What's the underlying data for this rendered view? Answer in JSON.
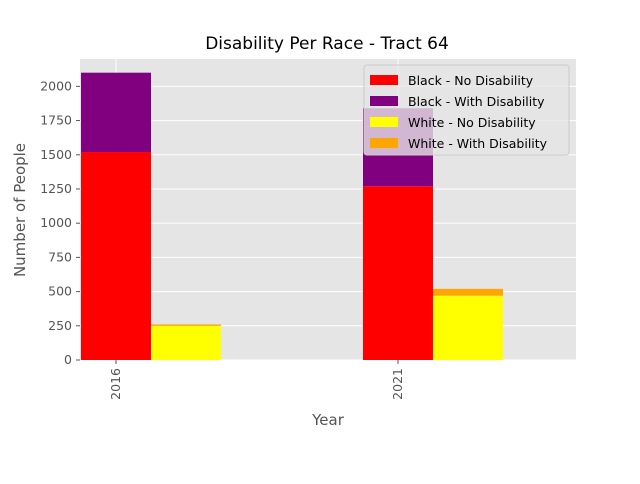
{
  "chart_data": {
    "type": "bar",
    "title": "Disability Per Race - Tract 64",
    "xlabel": "Year",
    "ylabel": "Number of People",
    "categories": [
      "2016",
      "2021"
    ],
    "ylim": [
      0,
      2200
    ],
    "yticks": [
      0,
      250,
      500,
      750,
      1000,
      1250,
      1500,
      1750,
      2000
    ],
    "grid": true,
    "legend_position": "top-right",
    "series": [
      {
        "name": "Black - No Disability",
        "group": "Black",
        "color": "#ff0000",
        "values": [
          1520,
          1270
        ]
      },
      {
        "name": "Black - With Disability",
        "group": "Black",
        "color": "#800080",
        "values": [
          580,
          570
        ]
      },
      {
        "name": "White - No Disability",
        "group": "White",
        "color": "#ffff00",
        "values": [
          250,
          470
        ]
      },
      {
        "name": "White - With Disability",
        "group": "White",
        "color": "#ffa500",
        "values": [
          10,
          50
        ]
      }
    ]
  }
}
